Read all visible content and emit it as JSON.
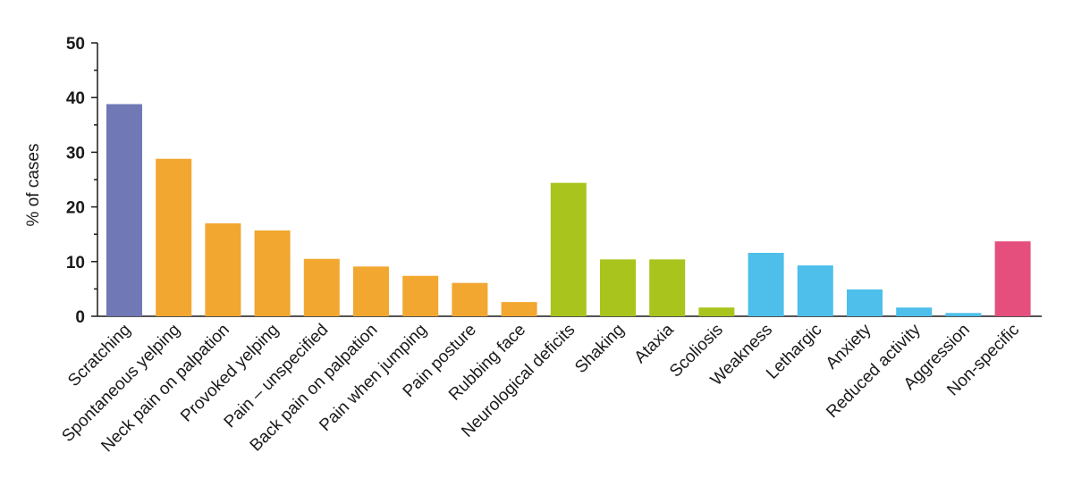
{
  "chart_data": {
    "type": "bar",
    "ylabel": "% of cases",
    "ylim": [
      0,
      50
    ],
    "yticks": [
      0,
      10,
      20,
      30,
      40,
      50
    ],
    "categories": [
      "Scratching",
      "Spontaneous yelping",
      "Neck pain on palpation",
      "Provoked yelping",
      "Pain – unspecified",
      "Back pain on palpation",
      "Pain when jumping",
      "Pain posture",
      "Rubbing face",
      "Neurological deficits",
      "Shaking",
      "Ataxia",
      "Scoliosis",
      "Weakness",
      "Lethargic",
      "Anxiety",
      "Reduced activity",
      "Aggression",
      "Non-specific"
    ],
    "values": [
      38.8,
      28.8,
      17,
      15.7,
      10.5,
      9.1,
      7.4,
      6.1,
      2.6,
      24.4,
      10.4,
      10.4,
      1.6,
      11.6,
      9.3,
      4.9,
      1.6,
      0.6,
      13.7
    ],
    "colors": [
      "#7079b5",
      "#f2a731",
      "#f2a731",
      "#f2a731",
      "#f2a731",
      "#f2a731",
      "#f2a731",
      "#f2a731",
      "#f2a731",
      "#a9c41c",
      "#a9c41c",
      "#a9c41c",
      "#a9c41c",
      "#4dbfea",
      "#4dbfea",
      "#4dbfea",
      "#4dbfea",
      "#4dbfea",
      "#e54f7e"
    ],
    "grid": false,
    "legend": "none"
  }
}
